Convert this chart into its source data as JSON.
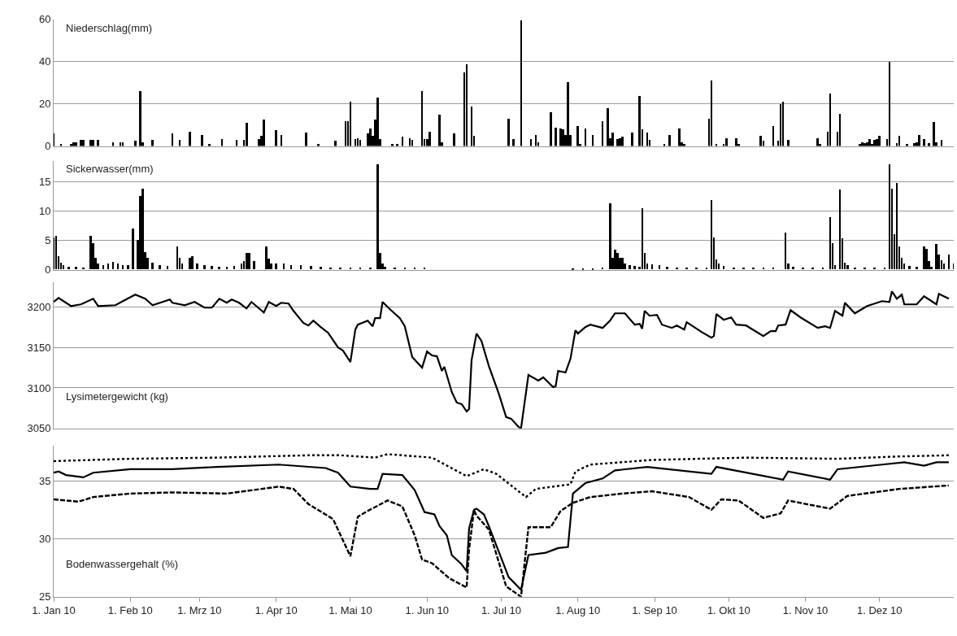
{
  "chart_data": [
    {
      "type": "bar",
      "title": "Niederschlag(mm)",
      "xlim": [
        "2010-01-01",
        "2010-12-31"
      ],
      "ylim": [
        0,
        60
      ],
      "yticks": [
        0,
        20,
        40,
        60
      ],
      "grid": "y",
      "tick_labels": "y",
      "series": [
        {
          "color": "#000000",
          "x": [
            "2010-01-01",
            "2010-01-04",
            "2010-01-08",
            "2010-01-09",
            "2010-01-10",
            "2010-01-12",
            "2010-01-13",
            "2010-01-16",
            "2010-01-17",
            "2010-01-19",
            "2010-01-25",
            "2010-01-28",
            "2010-01-29",
            "2010-02-03",
            "2010-02-05",
            "2010-02-06",
            "2010-02-10",
            "2010-02-18",
            "2010-02-21",
            "2010-02-25",
            "2010-03-02",
            "2010-03-05",
            "2010-03-10",
            "2010-03-16",
            "2010-03-19",
            "2010-03-20",
            "2010-03-25",
            "2010-03-26",
            "2010-03-27",
            "2010-04-01",
            "2010-04-03",
            "2010-04-13",
            "2010-04-18",
            "2010-04-25",
            "2010-04-29",
            "2010-04-30",
            "2010-05-01",
            "2010-05-03",
            "2010-05-04",
            "2010-05-05",
            "2010-05-08",
            "2010-05-09",
            "2010-05-10",
            "2010-05-11",
            "2010-05-12",
            "2010-05-13",
            "2010-05-18",
            "2010-05-20",
            "2010-05-22",
            "2010-05-25",
            "2010-05-26",
            "2010-05-30",
            "2010-05-31",
            "2010-06-01",
            "2010-06-02",
            "2010-06-06",
            "2010-06-07",
            "2010-06-12",
            "2010-06-16",
            "2010-06-17",
            "2010-06-19",
            "2010-06-20",
            "2010-07-04",
            "2010-07-06",
            "2010-07-09",
            "2010-07-13",
            "2010-07-15",
            "2010-07-16",
            "2010-07-21",
            "2010-07-23",
            "2010-07-25",
            "2010-07-26",
            "2010-07-27",
            "2010-07-28",
            "2010-07-29",
            "2010-08-01",
            "2010-08-02",
            "2010-08-04",
            "2010-08-07",
            "2010-08-11",
            "2010-08-13",
            "2010-08-14",
            "2010-08-15",
            "2010-08-17",
            "2010-08-18",
            "2010-08-19",
            "2010-08-23",
            "2010-08-26",
            "2010-08-27",
            "2010-08-29",
            "2010-08-30",
            "2010-09-05",
            "2010-09-07",
            "2010-09-11",
            "2010-09-12",
            "2010-09-13",
            "2010-09-23",
            "2010-09-24",
            "2010-09-26",
            "2010-09-29",
            "2010-09-30",
            "2010-10-04",
            "2010-10-05",
            "2010-10-14",
            "2010-10-15",
            "2010-10-19",
            "2010-10-21",
            "2010-10-22",
            "2010-10-23",
            "2010-10-25",
            "2010-11-06",
            "2010-11-07",
            "2010-11-10",
            "2010-11-11",
            "2010-11-14",
            "2010-11-15",
            "2010-11-23",
            "2010-11-24",
            "2010-11-25",
            "2010-11-26",
            "2010-11-27",
            "2010-11-28",
            "2010-11-29",
            "2010-11-30",
            "2010-12-01",
            "2010-12-04",
            "2010-12-05",
            "2010-12-08",
            "2010-12-09",
            "2010-12-12",
            "2010-12-15",
            "2010-12-16",
            "2010-12-17",
            "2010-12-19",
            "2010-12-21",
            "2010-12-23",
            "2010-12-24",
            "2010-12-26"
          ],
          "values": [
            6,
            1,
            1,
            2,
            2,
            3,
            3,
            3,
            3,
            3,
            2,
            2,
            2,
            2.5,
            26,
            2,
            3,
            6,
            3,
            7,
            5.5,
            1,
            3.5,
            3,
            3,
            11,
            3.5,
            5,
            12.5,
            7.5,
            5.5,
            6.5,
            1,
            2.5,
            12,
            12,
            21,
            3.5,
            4,
            3,
            6,
            8.5,
            5,
            12.5,
            23,
            3.5,
            1,
            1,
            4.5,
            4,
            3,
            26,
            3.5,
            3.5,
            7,
            15,
            2,
            6,
            35,
            39,
            19,
            5,
            13,
            3.5,
            59.5,
            3.5,
            5.5,
            2,
            16,
            9,
            8.5,
            8,
            5.5,
            30.5,
            5.5,
            9.5,
            1,
            8.5,
            5.5,
            12,
            18,
            4,
            6.5,
            3.5,
            4,
            4.5,
            6.5,
            24,
            8,
            6.5,
            3,
            1,
            5.5,
            8.5,
            2,
            1,
            13,
            31,
            1,
            1,
            4,
            4,
            1,
            5,
            2.5,
            9.5,
            2.5,
            20,
            21,
            3,
            4,
            1,
            7,
            25,
            7,
            15.5,
            1,
            2,
            1.5,
            2,
            3.5,
            1,
            3,
            3.5,
            5,
            3.5,
            40,
            1.5,
            5,
            1,
            1.5,
            2,
            5.5,
            3.5,
            1.5,
            11.5,
            2,
            3
          ]
        }
      ]
    },
    {
      "type": "bar",
      "title": "Sickerwasser(mm)",
      "xlim": [
        "2010-01-01",
        "2010-12-31"
      ],
      "ylim": [
        0,
        18.5
      ],
      "yticks": [
        0,
        5,
        10,
        15
      ],
      "grid": "y",
      "tick_labels": "y",
      "series": [
        {
          "color": "#000000",
          "x": [
            "2010-01-01",
            "2010-01-02",
            "2010-01-03",
            "2010-01-04",
            "2010-01-05",
            "2010-01-07",
            "2010-01-10",
            "2010-01-13",
            "2010-01-16",
            "2010-01-17",
            "2010-01-18",
            "2010-01-19",
            "2010-01-21",
            "2010-01-23",
            "2010-01-25",
            "2010-01-27",
            "2010-01-29",
            "2010-01-31",
            "2010-02-02",
            "2010-02-04",
            "2010-02-05",
            "2010-02-06",
            "2010-02-07",
            "2010-02-08",
            "2010-02-10",
            "2010-02-13",
            "2010-02-16",
            "2010-02-20",
            "2010-02-21",
            "2010-02-22",
            "2010-02-25",
            "2010-02-26",
            "2010-02-28",
            "2010-03-03",
            "2010-03-06",
            "2010-03-09",
            "2010-03-12",
            "2010-03-15",
            "2010-03-18",
            "2010-03-19",
            "2010-03-20",
            "2010-03-21",
            "2010-03-23",
            "2010-03-28",
            "2010-03-29",
            "2010-03-30",
            "2010-04-01",
            "2010-04-04",
            "2010-04-07",
            "2010-04-11",
            "2010-04-15",
            "2010-04-19",
            "2010-04-23",
            "2010-04-27",
            "2010-05-01",
            "2010-05-05",
            "2010-05-09",
            "2010-05-12",
            "2010-05-13",
            "2010-05-14",
            "2010-05-15",
            "2010-05-19",
            "2010-05-23",
            "2010-05-27",
            "2010-05-31",
            "2010-07-30",
            "2010-08-03",
            "2010-08-07",
            "2010-08-11",
            "2010-08-14",
            "2010-08-15",
            "2010-08-16",
            "2010-08-17",
            "2010-08-18",
            "2010-08-19",
            "2010-08-20",
            "2010-08-22",
            "2010-08-24",
            "2010-08-26",
            "2010-08-27",
            "2010-08-28",
            "2010-08-29",
            "2010-08-31",
            "2010-09-03",
            "2010-09-06",
            "2010-09-10",
            "2010-09-14",
            "2010-09-18",
            "2010-09-22",
            "2010-09-24",
            "2010-09-25",
            "2010-09-26",
            "2010-09-27",
            "2010-09-29",
            "2010-10-03",
            "2010-10-07",
            "2010-10-11",
            "2010-10-15",
            "2010-10-19",
            "2010-10-24",
            "2010-10-25",
            "2010-10-27",
            "2010-10-31",
            "2010-11-04",
            "2010-11-08",
            "2010-11-11",
            "2010-11-12",
            "2010-11-13",
            "2010-11-15",
            "2010-11-16",
            "2010-11-17",
            "2010-11-18",
            "2010-11-21",
            "2010-11-25",
            "2010-11-29",
            "2010-12-03",
            "2010-12-05",
            "2010-12-06",
            "2010-12-07",
            "2010-12-08",
            "2010-12-09",
            "2010-12-10",
            "2010-12-11",
            "2010-12-13",
            "2010-12-16",
            "2010-12-19",
            "2010-12-20",
            "2010-12-21",
            "2010-12-22",
            "2010-12-24",
            "2010-12-25",
            "2010-12-26",
            "2010-12-27",
            "2010-12-29",
            "2010-12-31"
          ],
          "values": [
            5.5,
            5.8,
            2.3,
            1.2,
            0.8,
            0.5,
            0.5,
            0.4,
            5.8,
            4.5,
            2,
            1,
            0.8,
            1,
            1.3,
            1,
            0.8,
            0.8,
            7,
            5,
            12.5,
            13.8,
            3,
            2,
            1.2,
            0.7,
            0.6,
            4,
            2,
            1,
            2,
            2.3,
            1,
            0.8,
            0.6,
            0.5,
            0.5,
            0.6,
            1,
            1.5,
            2.8,
            2.8,
            1.5,
            4,
            1.8,
            1,
            1,
            1,
            0.7,
            0.7,
            0.6,
            0.5,
            0.3,
            0.3,
            0.3,
            0.3,
            0.3,
            18,
            2.8,
            1,
            0.5,
            0.3,
            0.3,
            0.3,
            0.3,
            0.2,
            0.2,
            0.2,
            0.3,
            11.3,
            2,
            3.4,
            2.8,
            2,
            2,
            1,
            0.7,
            0.6,
            0.5,
            10.5,
            2.8,
            1,
            0.9,
            0.8,
            0.5,
            0.4,
            0.4,
            0.4,
            0.4,
            11.8,
            5.5,
            1.7,
            1,
            0.6,
            0.3,
            0.3,
            0.3,
            0.3,
            0.3,
            6.3,
            1,
            0.5,
            0.3,
            0.3,
            0.3,
            8.9,
            4.5,
            0.8,
            13.7,
            5.3,
            1.2,
            0.8,
            0.4,
            0.3,
            0.4,
            0.4,
            18,
            13.8,
            6,
            14.8,
            4,
            2,
            1,
            0.6,
            0.5,
            4,
            3.5,
            1.5,
            0.5,
            4.3,
            2.5,
            1.6,
            1,
            2.5,
            1
          ]
        }
      ]
    },
    {
      "type": "line",
      "title": "Lysimetergewicht (kg)",
      "xlim": [
        "2010-01-01",
        "2010-12-31"
      ],
      "ylim": [
        3050,
        3230
      ],
      "yticks": [
        3050,
        3100,
        3150,
        3200
      ],
      "grid": "y",
      "tick_labels": "y",
      "marker": "none",
      "series": [
        {
          "color": "#000000",
          "line_style": "solid",
          "x": [
            "2010-01-01",
            "2010-01-03",
            "2010-01-08",
            "2010-01-12",
            "2010-01-17",
            "2010-01-19",
            "2010-01-26",
            "2010-01-29",
            "2010-02-03",
            "2010-02-07",
            "2010-02-10",
            "2010-02-17",
            "2010-02-18",
            "2010-02-23",
            "2010-02-27",
            "2010-03-03",
            "2010-03-06",
            "2010-03-09",
            "2010-03-12",
            "2010-03-14",
            "2010-03-17",
            "2010-03-20",
            "2010-03-22",
            "2010-03-27",
            "2010-03-29",
            "2010-04-01",
            "2010-04-03",
            "2010-04-06",
            "2010-04-08",
            "2010-04-12",
            "2010-04-14",
            "2010-04-16",
            "2010-04-19",
            "2010-04-22",
            "2010-04-26",
            "2010-04-28",
            "2010-05-01",
            "2010-05-03",
            "2010-05-04",
            "2010-05-08",
            "2010-05-10",
            "2010-05-11",
            "2010-05-13",
            "2010-05-14",
            "2010-05-17",
            "2010-05-21",
            "2010-05-23",
            "2010-05-26",
            "2010-05-30",
            "2010-06-01",
            "2010-06-03",
            "2010-06-05",
            "2010-06-07",
            "2010-06-08",
            "2010-06-11",
            "2010-06-13",
            "2010-06-15",
            "2010-06-17",
            "2010-06-18",
            "2010-06-19",
            "2010-06-21",
            "2010-06-23",
            "2010-06-26",
            "2010-06-30",
            "2010-07-03",
            "2010-07-05",
            "2010-07-08",
            "2010-07-09",
            "2010-07-12",
            "2010-07-16",
            "2010-07-18",
            "2010-07-22",
            "2010-07-23",
            "2010-07-24",
            "2010-07-27",
            "2010-07-29",
            "2010-07-31",
            "2010-08-01",
            "2010-08-04",
            "2010-08-06",
            "2010-08-11",
            "2010-08-14",
            "2010-08-16",
            "2010-08-20",
            "2010-08-24",
            "2010-08-26",
            "2010-08-27",
            "2010-08-28",
            "2010-08-30",
            "2010-09-02",
            "2010-09-04",
            "2010-09-08",
            "2010-09-10",
            "2010-09-13",
            "2010-09-14",
            "2010-09-20",
            "2010-09-24",
            "2010-09-25",
            "2010-09-26",
            "2010-09-29",
            "2010-10-02",
            "2010-10-04",
            "2010-10-08",
            "2010-10-15",
            "2010-10-18",
            "2010-10-20",
            "2010-10-21",
            "2010-10-24",
            "2010-10-26",
            "2010-10-30",
            "2010-11-06",
            "2010-11-09",
            "2010-11-11",
            "2010-11-13",
            "2010-11-16",
            "2010-11-17",
            "2010-11-21",
            "2010-11-26",
            "2010-12-02",
            "2010-12-05",
            "2010-12-06",
            "2010-12-08",
            "2010-12-10",
            "2010-12-11",
            "2010-12-16",
            "2010-12-19",
            "2010-12-24",
            "2010-12-25",
            "2010-12-29"
          ],
          "values": [
            3206,
            3211,
            3201,
            3203,
            3210,
            3201,
            3202,
            3207,
            3215,
            3210,
            3202,
            3209,
            3205,
            3202,
            3206,
            3199,
            3199,
            3210,
            3205,
            3209,
            3205,
            3198,
            3206,
            3193,
            3206,
            3201,
            3205,
            3204,
            3195,
            3180,
            3177,
            3183,
            3175,
            3168,
            3150,
            3146,
            3132,
            3172,
            3178,
            3183,
            3176,
            3186,
            3186,
            3206,
            3197,
            3186,
            3176,
            3138,
            3125,
            3145,
            3140,
            3139,
            3121,
            3126,
            3095,
            3082,
            3080,
            3071,
            3074,
            3134,
            3167,
            3158,
            3127,
            3093,
            3064,
            3062,
            3052,
            3050,
            3116,
            3109,
            3113,
            3101,
            3102,
            3121,
            3119,
            3136,
            3171,
            3167,
            3175,
            3178,
            3174,
            3183,
            3192,
            3192,
            3178,
            3179,
            3173,
            3195,
            3189,
            3190,
            3178,
            3174,
            3177,
            3172,
            3181,
            3169,
            3162,
            3164,
            3191,
            3184,
            3187,
            3178,
            3177,
            3164,
            3170,
            3170,
            3177,
            3178,
            3196,
            3187,
            3174,
            3176,
            3174,
            3195,
            3189,
            3205,
            3192,
            3201,
            3207,
            3206,
            3219,
            3210,
            3215,
            3203,
            3203,
            3213,
            3203,
            3216,
            3210
          ]
        }
      ]
    },
    {
      "type": "line",
      "title": "Bodenwassergehalt (%)",
      "xlim": [
        "2010-01-01",
        "2010-12-31"
      ],
      "ylim": [
        25,
        38
      ],
      "yticks": [
        25,
        30,
        35
      ],
      "grid": "y",
      "marker": "none",
      "xticks": [
        {
          "value": "2010-01-01",
          "label": "1. Jan 10"
        },
        {
          "value": "2010-02-01",
          "label": "1. Feb 10"
        },
        {
          "value": "2010-03-01",
          "label": "1. Mrz 10"
        },
        {
          "value": "2010-04-01",
          "label": "1. Apr 10"
        },
        {
          "value": "2010-05-01",
          "label": "1. Mai 10"
        },
        {
          "value": "2010-06-01",
          "label": "1. Jun 10"
        },
        {
          "value": "2010-07-01",
          "label": "1. Jul 10"
        },
        {
          "value": "2010-08-01",
          "label": "1. Aug 10"
        },
        {
          "value": "2010-09-01",
          "label": "1. Sep 10"
        },
        {
          "value": "2010-10-01",
          "label": "1. Okt 10"
        },
        {
          "value": "2010-11-01",
          "label": "1. Nov 10"
        },
        {
          "value": "2010-12-01",
          "label": "1. Dez 10"
        }
      ],
      "series": [
        {
          "color": "#000000",
          "line_style": "dotted",
          "x": [
            "2010-01-01",
            "2010-02-01",
            "2010-03-08",
            "2010-04-14",
            "2010-04-27",
            "2010-05-11",
            "2010-05-16",
            "2010-06-03",
            "2010-06-17",
            "2010-06-24",
            "2010-06-29",
            "2010-07-11",
            "2010-07-15",
            "2010-07-29",
            "2010-07-31",
            "2010-08-06",
            "2010-08-31",
            "2010-10-08",
            "2010-11-14",
            "2010-12-09",
            "2010-12-29"
          ],
          "values": [
            36.7,
            36.9,
            37.0,
            37.2,
            37.2,
            37.0,
            37.3,
            37.0,
            35.4,
            36.0,
            35.6,
            33.6,
            34.3,
            34.7,
            35.8,
            36.4,
            36.8,
            37.0,
            36.9,
            37.1,
            37.2
          ]
        },
        {
          "color": "#000000",
          "line_style": "solid",
          "x": [
            "2010-01-01",
            "2010-01-03",
            "2010-01-06",
            "2010-01-13",
            "2010-01-17",
            "2010-02-01",
            "2010-02-18",
            "2010-03-08",
            "2010-04-02",
            "2010-04-21",
            "2010-04-26",
            "2010-05-01",
            "2010-05-09",
            "2010-05-12",
            "2010-05-14",
            "2010-05-22",
            "2010-05-27",
            "2010-05-31",
            "2010-06-04",
            "2010-06-06",
            "2010-06-09",
            "2010-06-11",
            "2010-06-15",
            "2010-06-17",
            "2010-06-18",
            "2010-06-20",
            "2010-06-21",
            "2010-06-24",
            "2010-06-26",
            "2010-07-04",
            "2010-07-09",
            "2010-07-12",
            "2010-07-19",
            "2010-07-24",
            "2010-07-28",
            "2010-07-30",
            "2010-08-04",
            "2010-08-11",
            "2010-08-16",
            "2010-08-29",
            "2010-09-24",
            "2010-09-26",
            "2010-10-23",
            "2010-10-25",
            "2010-11-11",
            "2010-11-14",
            "2010-12-02",
            "2010-12-11",
            "2010-12-19",
            "2010-12-24",
            "2010-12-29"
          ],
          "values": [
            35.7,
            35.8,
            35.5,
            35.3,
            35.7,
            36.0,
            36.0,
            36.2,
            36.4,
            36.1,
            35.7,
            34.5,
            34.3,
            34.3,
            35.6,
            35.5,
            34.2,
            32.3,
            32.1,
            31.1,
            30.3,
            28.6,
            27.8,
            27.2,
            30.9,
            32.5,
            32.6,
            32.1,
            31.1,
            26.7,
            25.6,
            28.6,
            28.8,
            29.2,
            29.3,
            33.9,
            34.8,
            35.2,
            35.9,
            36.2,
            35.6,
            36.2,
            35.1,
            35.8,
            35.1,
            36.0,
            36.4,
            36.6,
            36.3,
            36.6,
            36.6
          ]
        },
        {
          "color": "#000000",
          "line_style": "dashed",
          "x": [
            "2010-01-01",
            "2010-01-11",
            "2010-01-17",
            "2010-02-01",
            "2010-02-18",
            "2010-03-12",
            "2010-04-02",
            "2010-04-08",
            "2010-04-14",
            "2010-04-24",
            "2010-05-01",
            "2010-05-04",
            "2010-05-08",
            "2010-05-16",
            "2010-05-22",
            "2010-05-27",
            "2010-05-30",
            "2010-06-03",
            "2010-06-10",
            "2010-06-17",
            "2010-06-18",
            "2010-06-20",
            "2010-06-21",
            "2010-06-26",
            "2010-07-03",
            "2010-07-09",
            "2010-07-12",
            "2010-07-21",
            "2010-07-25",
            "2010-07-30",
            "2010-08-06",
            "2010-08-19",
            "2010-08-31",
            "2010-09-15",
            "2010-09-24",
            "2010-09-28",
            "2010-10-05",
            "2010-10-15",
            "2010-10-22",
            "2010-10-25",
            "2010-11-11",
            "2010-11-18",
            "2010-12-09",
            "2010-12-29"
          ],
          "values": [
            33.4,
            33.2,
            33.6,
            33.9,
            34.0,
            33.9,
            34.5,
            34.3,
            33.0,
            31.7,
            28.5,
            31.9,
            32.4,
            33.3,
            32.8,
            30.3,
            28.2,
            27.9,
            26.6,
            25.8,
            29.1,
            32.5,
            32.0,
            30.8,
            25.9,
            25.0,
            31.0,
            31.0,
            32.4,
            33.1,
            33.6,
            33.9,
            34.1,
            33.6,
            32.5,
            33.4,
            33.3,
            31.8,
            32.2,
            33.3,
            32.6,
            33.7,
            34.3,
            34.6
          ]
        }
      ]
    }
  ]
}
